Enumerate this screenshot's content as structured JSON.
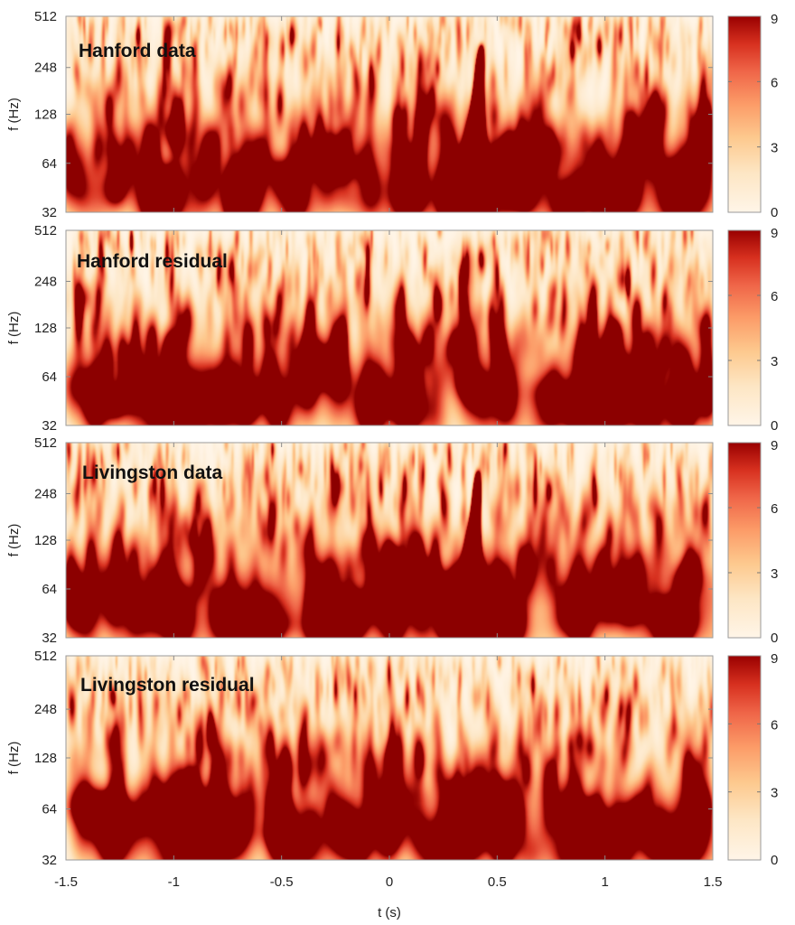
{
  "chart_data": {
    "type": "heatmap",
    "xlabel": "t (s)",
    "ylabel": "f (Hz)",
    "xlim": [
      -1.5,
      1.5
    ],
    "ylim": [
      32,
      512
    ],
    "yscale": "log2",
    "x_ticks": [
      "-1.5",
      "-1",
      "-0.5",
      "0",
      "0.5",
      "1",
      "1.5"
    ],
    "x_tick_values": [
      -1.5,
      -1,
      -0.5,
      0,
      0.5,
      1,
      1.5
    ],
    "y_ticks": [
      "512",
      "248",
      "128",
      "64",
      "32"
    ],
    "y_tick_values": [
      512,
      248,
      128,
      64,
      32
    ],
    "colorbar": {
      "range": [
        0,
        9
      ],
      "ticks": [
        "9",
        "6",
        "3",
        "0"
      ],
      "tick_values": [
        9,
        6,
        3,
        0
      ],
      "colors": [
        "#fff5e8",
        "#fdd49e",
        "#fc8d59",
        "#e34a33",
        "#b30000",
        "#7f0000"
      ]
    },
    "panels": [
      {
        "label": "Hanford data",
        "seed": 11,
        "chirp": {
          "t_start": 0.345,
          "t_end": 0.425,
          "f_start": 34,
          "f_end": 340,
          "peak": 9,
          "width_low": 0.045
        },
        "features": [
          {
            "t": -1.27,
            "f": 44,
            "v": 6.5
          },
          {
            "t": -0.64,
            "f": 46,
            "v": 6.8
          },
          {
            "t": -1.02,
            "f": 100,
            "v": 6.0
          },
          {
            "t": -0.24,
            "f": 140,
            "v": 4.0
          },
          {
            "t": 1.12,
            "f": 120,
            "v": 5.0
          },
          {
            "t": 1.46,
            "f": 120,
            "v": 5.2
          },
          {
            "t": 0.08,
            "f": 42,
            "v": 3.0
          },
          {
            "t": 0.85,
            "f": 38,
            "v": 3.5
          }
        ]
      },
      {
        "label": "Hanford residual",
        "seed": 23,
        "chirp": null,
        "features": [
          {
            "t": -1.27,
            "f": 44,
            "v": 7.0
          },
          {
            "t": -0.64,
            "f": 46,
            "v": 7.3
          },
          {
            "t": -1.02,
            "f": 100,
            "v": 6.5
          },
          {
            "t": -1.4,
            "f": 200,
            "v": 5.0
          },
          {
            "t": 0.28,
            "f": 100,
            "v": 5.0
          },
          {
            "t": 0.85,
            "f": 38,
            "v": 5.0
          },
          {
            "t": 1.06,
            "f": 120,
            "v": 5.2
          },
          {
            "t": 1.46,
            "f": 130,
            "v": 5.5
          },
          {
            "t": 0.02,
            "f": 45,
            "v": 3.0
          }
        ]
      },
      {
        "label": "Livingston data",
        "seed": 37,
        "chirp": {
          "t_start": 0.33,
          "t_end": 0.41,
          "f_start": 36,
          "f_end": 340,
          "peak": 9,
          "width_low": 0.04
        },
        "features": [
          {
            "t": 0.45,
            "f": 37,
            "v": 4.0
          },
          {
            "t": -0.14,
            "f": 40,
            "v": 4.5
          },
          {
            "t": 1.39,
            "f": 40,
            "v": 6.5
          },
          {
            "t": 0.0,
            "f": 110,
            "v": 5.5
          },
          {
            "t": -0.32,
            "f": 48,
            "v": 3.5
          },
          {
            "t": 0.9,
            "f": 160,
            "v": 4.5
          },
          {
            "t": 1.3,
            "f": 38,
            "v": 3.5
          }
        ]
      },
      {
        "label": "Livingston residual",
        "seed": 53,
        "chirp": null,
        "features": [
          {
            "t": -0.14,
            "f": 42,
            "v": 6.5
          },
          {
            "t": 0.52,
            "f": 36,
            "v": 6.8
          },
          {
            "t": 1.39,
            "f": 40,
            "v": 7.0
          },
          {
            "t": 0.0,
            "f": 130,
            "v": 6.0
          },
          {
            "t": 0.48,
            "f": 60,
            "v": 4.5
          },
          {
            "t": 0.88,
            "f": 170,
            "v": 5.2
          },
          {
            "t": -0.82,
            "f": 180,
            "v": 4.5
          },
          {
            "t": 1.23,
            "f": 38,
            "v": 3.5
          }
        ]
      }
    ]
  }
}
